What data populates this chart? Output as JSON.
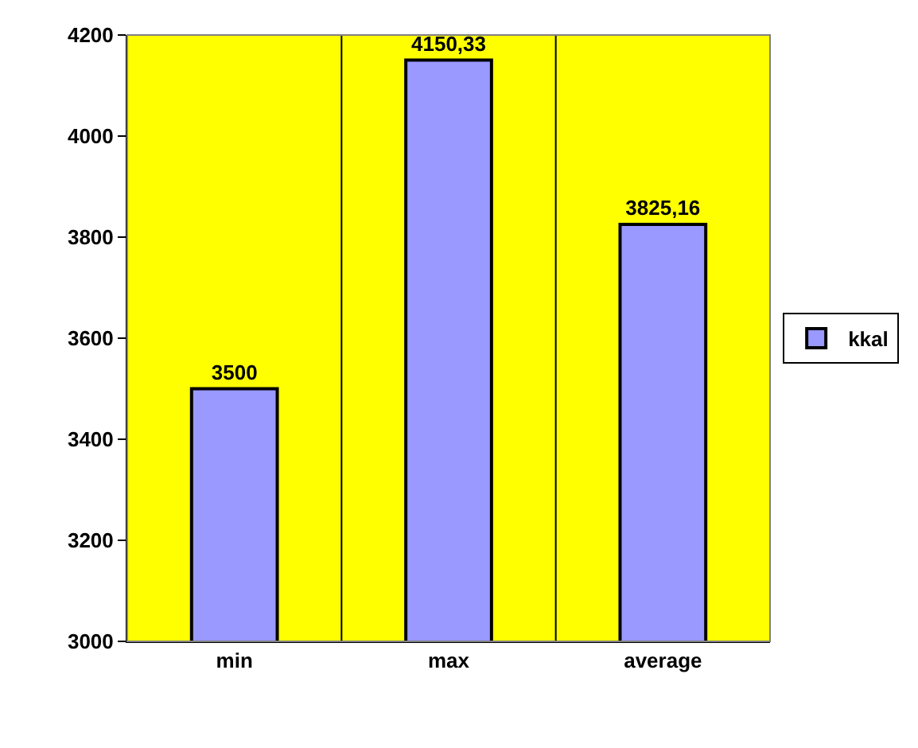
{
  "chart_data": {
    "type": "bar",
    "categories": [
      "min",
      "max",
      "average"
    ],
    "series": [
      {
        "name": "kkal",
        "color": "#9999ff",
        "values": [
          3500,
          4150.33,
          3825.16
        ],
        "value_labels": [
          "3500",
          "4150,33",
          "3825,16"
        ]
      }
    ],
    "ylim": [
      3000,
      4200
    ],
    "yticks": [
      3000,
      3200,
      3400,
      3600,
      3800,
      4000,
      4200
    ],
    "grid": "x",
    "legend": "right"
  }
}
